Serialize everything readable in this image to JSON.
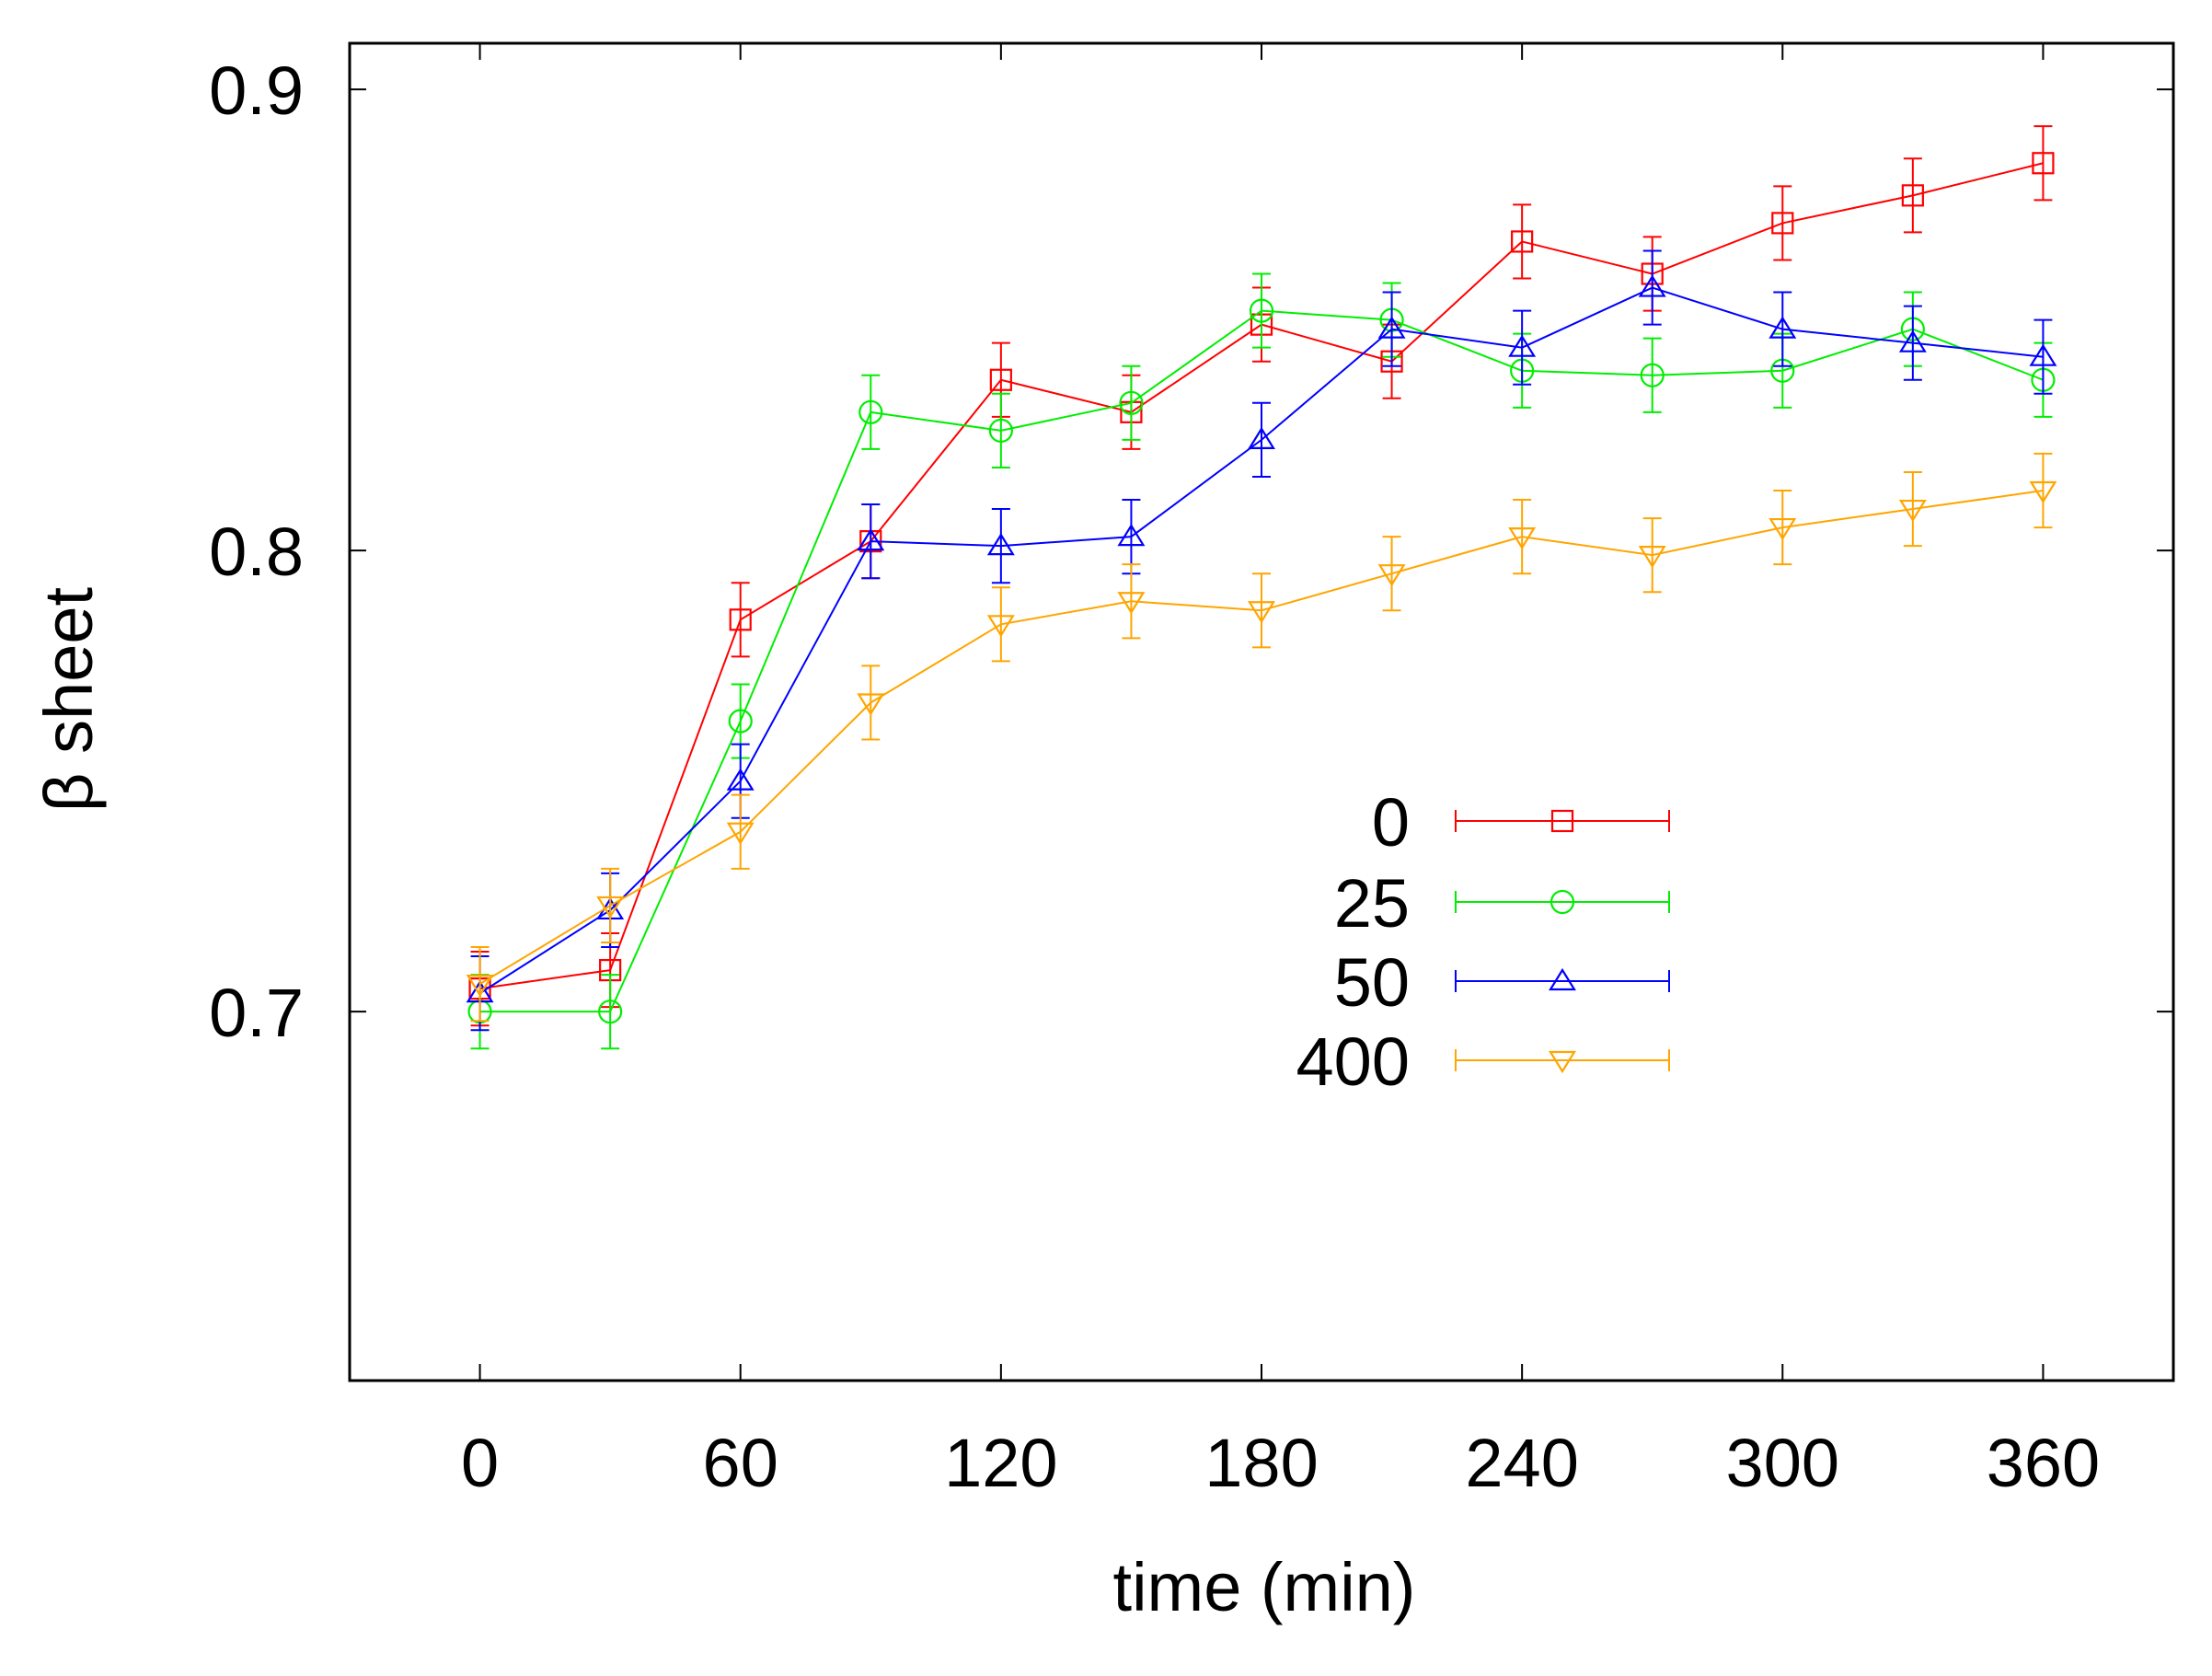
{
  "chart_data": {
    "type": "line",
    "title": "",
    "xlabel": "time (min)",
    "ylabel": "β sheet",
    "xlim": [
      -30,
      390
    ],
    "ylim": [
      0.62,
      0.91
    ],
    "x_ticks": [
      0,
      60,
      120,
      180,
      240,
      300,
      360
    ],
    "x_tick_labels": [
      "0",
      "60",
      "120",
      "180",
      "240",
      "300",
      "360"
    ],
    "y_ticks": [
      0.7,
      0.8,
      0.9
    ],
    "y_tick_labels": [
      "0.7",
      "0.8",
      "0.9"
    ],
    "grid": false,
    "error_bars": true,
    "legend_position": "center-right",
    "x": [
      0,
      30,
      60,
      90,
      120,
      150,
      180,
      210,
      240,
      270,
      300,
      330,
      360
    ],
    "series": [
      {
        "name": "0",
        "color": "#ff0000",
        "marker": "square",
        "values": [
          0.705,
          0.709,
          0.785,
          0.802,
          0.837,
          0.83,
          0.849,
          0.841,
          0.867,
          0.86,
          0.871,
          0.877,
          0.884
        ],
        "errors": [
          0.008,
          0.008,
          0.008,
          0.008,
          0.008,
          0.008,
          0.008,
          0.008,
          0.008,
          0.008,
          0.008,
          0.008,
          0.008
        ]
      },
      {
        "name": "25",
        "color": "#00ee00",
        "marker": "circle",
        "values": [
          0.7,
          0.7,
          0.763,
          0.83,
          0.826,
          0.832,
          0.852,
          0.85,
          0.839,
          0.838,
          0.839,
          0.848,
          0.837
        ],
        "errors": [
          0.008,
          0.008,
          0.008,
          0.008,
          0.008,
          0.008,
          0.008,
          0.008,
          0.008,
          0.008,
          0.008,
          0.008,
          0.008
        ]
      },
      {
        "name": "50",
        "color": "#0000ff",
        "marker": "triangle-up",
        "values": [
          0.704,
          0.722,
          0.75,
          0.802,
          0.801,
          0.803,
          0.824,
          0.848,
          0.844,
          0.857,
          0.848,
          0.845,
          0.842
        ],
        "errors": [
          0.008,
          0.008,
          0.008,
          0.008,
          0.008,
          0.008,
          0.008,
          0.008,
          0.008,
          0.008,
          0.008,
          0.008,
          0.008
        ]
      },
      {
        "name": "400",
        "color": "#ffa500",
        "marker": "triangle-down",
        "values": [
          0.706,
          0.723,
          0.739,
          0.767,
          0.784,
          0.789,
          0.787,
          0.795,
          0.803,
          0.799,
          0.805,
          0.809,
          0.813
        ],
        "errors": [
          0.008,
          0.008,
          0.008,
          0.008,
          0.008,
          0.008,
          0.008,
          0.008,
          0.008,
          0.008,
          0.008,
          0.008,
          0.008
        ]
      }
    ]
  }
}
